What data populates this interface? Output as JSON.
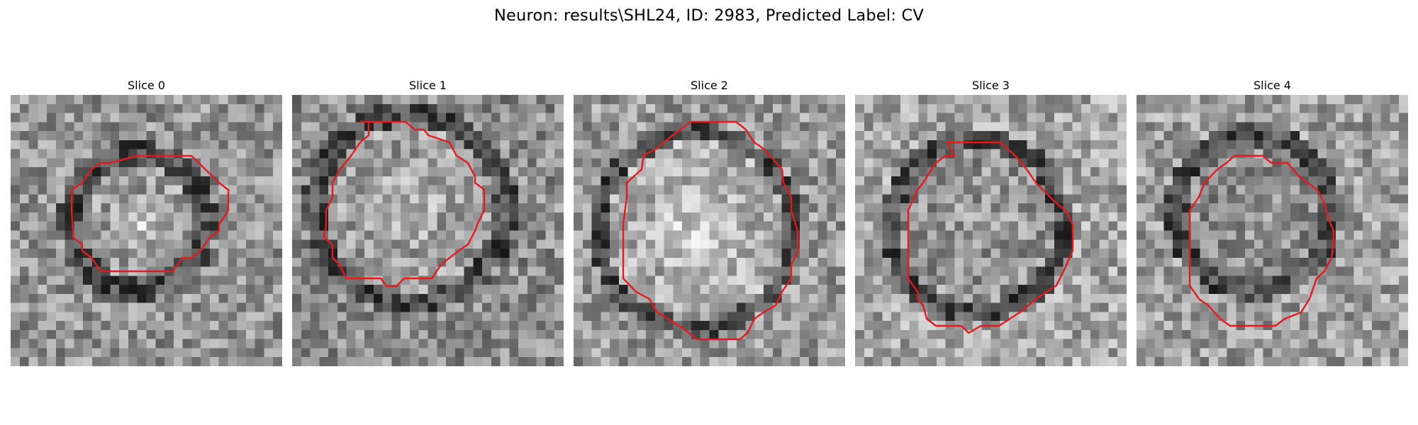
{
  "figure": {
    "suptitle": "Neuron: results\\SHL24, ID: 2983, Predicted Label: CV",
    "colormap": "gray",
    "contour_color": "#e41a1c",
    "pixel_grid": 30
  },
  "panels": [
    {
      "title": "Slice 0"
    },
    {
      "title": "Slice 1"
    },
    {
      "title": "Slice 2"
    },
    {
      "title": "Slice 3"
    },
    {
      "title": "Slice 4"
    }
  ]
}
